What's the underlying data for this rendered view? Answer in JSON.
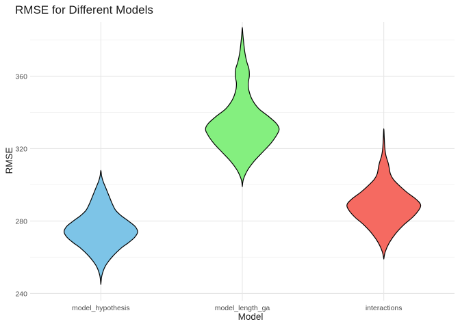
{
  "chart_data": {
    "type": "violin",
    "title": "RMSE for Different Models",
    "xlabel": "Model",
    "ylabel": "RMSE",
    "ylim": [
      236,
      390
    ],
    "yticks": [
      240,
      280,
      320,
      360
    ],
    "grid": true,
    "legend": "none",
    "categories": [
      "model_hypothesis",
      "model_length_ga",
      "interactions"
    ],
    "series": [
      {
        "category": "model_hypothesis",
        "color": "#7DC4E7",
        "min": 245,
        "max": 308,
        "density": [
          [
            245,
            0.0
          ],
          [
            250,
            0.03
          ],
          [
            255,
            0.12
          ],
          [
            260,
            0.3
          ],
          [
            265,
            0.55
          ],
          [
            268,
            0.75
          ],
          [
            271,
            0.92
          ],
          [
            274,
            1.0
          ],
          [
            277,
            0.93
          ],
          [
            280,
            0.75
          ],
          [
            283,
            0.55
          ],
          [
            286,
            0.4
          ],
          [
            290,
            0.3
          ],
          [
            294,
            0.22
          ],
          [
            298,
            0.14
          ],
          [
            302,
            0.06
          ],
          [
            305,
            0.02
          ],
          [
            308,
            0.0
          ]
        ]
      },
      {
        "category": "model_length_ga",
        "color": "#84EF7F",
        "min": 299,
        "max": 387,
        "density": [
          [
            299,
            0.0
          ],
          [
            303,
            0.03
          ],
          [
            308,
            0.14
          ],
          [
            313,
            0.32
          ],
          [
            318,
            0.55
          ],
          [
            323,
            0.78
          ],
          [
            328,
            0.95
          ],
          [
            331,
            1.0
          ],
          [
            334,
            0.92
          ],
          [
            338,
            0.7
          ],
          [
            342,
            0.45
          ],
          [
            347,
            0.27
          ],
          [
            352,
            0.18
          ],
          [
            356,
            0.16
          ],
          [
            360,
            0.19
          ],
          [
            364,
            0.18
          ],
          [
            368,
            0.12
          ],
          [
            373,
            0.07
          ],
          [
            378,
            0.04
          ],
          [
            383,
            0.015
          ],
          [
            387,
            0.0
          ]
        ]
      },
      {
        "category": "interactions",
        "color": "#F56A61",
        "min": 259,
        "max": 331,
        "density": [
          [
            259,
            0.0
          ],
          [
            263,
            0.04
          ],
          [
            268,
            0.15
          ],
          [
            273,
            0.32
          ],
          [
            278,
            0.55
          ],
          [
            282,
            0.78
          ],
          [
            286,
            0.95
          ],
          [
            289,
            1.0
          ],
          [
            292,
            0.88
          ],
          [
            296,
            0.62
          ],
          [
            300,
            0.4
          ],
          [
            303,
            0.26
          ],
          [
            306,
            0.18
          ],
          [
            309,
            0.15
          ],
          [
            312,
            0.12
          ],
          [
            316,
            0.06
          ],
          [
            320,
            0.03
          ],
          [
            325,
            0.015
          ],
          [
            331,
            0.0
          ]
        ]
      }
    ]
  }
}
